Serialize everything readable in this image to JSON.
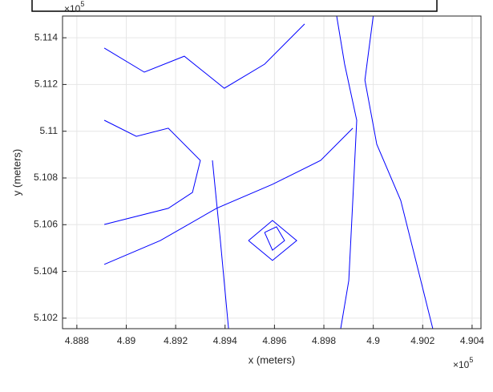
{
  "chart_data": {
    "type": "contour",
    "xlabel": "x (meters)",
    "ylabel": "y (meters)",
    "x_multiplier": {
      "base": "×10",
      "power": "5"
    },
    "y_multiplier": {
      "base": "×10",
      "power": "5"
    },
    "xlim": [
      488742,
      490436
    ],
    "ylim": [
      510155,
      511493
    ],
    "xticks": [
      {
        "value": 488800,
        "label": "4.888"
      },
      {
        "value": 489000,
        "label": "4.89"
      },
      {
        "value": 489200,
        "label": "4.892"
      },
      {
        "value": 489400,
        "label": "4.894"
      },
      {
        "value": 489600,
        "label": "4.896"
      },
      {
        "value": 489800,
        "label": "4.898"
      },
      {
        "value": 490000,
        "label": "4.9"
      },
      {
        "value": 490200,
        "label": "4.902"
      },
      {
        "value": 490400,
        "label": "4.904"
      }
    ],
    "yticks": [
      {
        "value": 510200,
        "label": "5.102"
      },
      {
        "value": 510400,
        "label": "5.104"
      },
      {
        "value": 510600,
        "label": "5.106"
      },
      {
        "value": 510800,
        "label": "5.108"
      },
      {
        "value": 511000,
        "label": "5.11"
      },
      {
        "value": 511200,
        "label": "5.112"
      },
      {
        "value": 511400,
        "label": "5.114"
      }
    ],
    "grid": true,
    "color": "#0000ff",
    "contours": [
      {
        "x": [
          489852,
          489884,
          489933,
          489917,
          489901,
          489868
        ],
        "y": [
          511493,
          511287,
          511047,
          510704,
          510361,
          510155
        ]
      },
      {
        "x": [
          490000,
          489966,
          490014,
          490111,
          490176,
          490241
        ],
        "y": [
          511493,
          511219,
          510944,
          510704,
          510430,
          510155
        ]
      },
      {
        "x": [
          488911,
          489138,
          489365,
          489592,
          489787,
          489917
        ],
        "y": [
          510430,
          510532,
          510670,
          510773,
          510875,
          511013
        ]
      },
      {
        "x": [
          489349,
          489381,
          489414
        ],
        "y": [
          510875,
          510532,
          510155
        ]
      },
      {
        "x": [
          489495,
          489592,
          489690,
          489592,
          489495
        ],
        "y": [
          510532,
          510618,
          510532,
          510447,
          510532
        ]
      },
      {
        "x": [
          489560,
          489608,
          489641,
          489592,
          489560
        ],
        "y": [
          510567,
          510591,
          510532,
          510491,
          510567
        ]
      },
      {
        "x": [
          488911,
          489073,
          489235,
          489397,
          489560,
          489722
        ],
        "y": [
          511356,
          511253,
          511321,
          511184,
          511287,
          511459
        ]
      },
      {
        "x": [
          488911,
          489041,
          489170,
          489300,
          489268,
          489170,
          488911
        ],
        "y": [
          511047,
          510978,
          511013,
          510875,
          510738,
          510670,
          510601
        ]
      }
    ]
  }
}
